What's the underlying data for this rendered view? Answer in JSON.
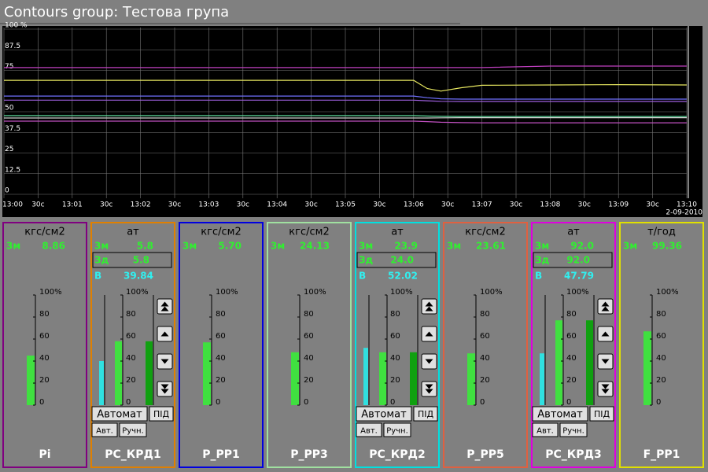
{
  "header": {
    "title": "Contours group: Тестова група"
  },
  "chart_data": {
    "type": "line",
    "x": [
      0,
      1,
      2,
      3,
      4,
      5,
      6,
      6.2,
      6.4,
      6.7,
      7,
      8,
      9,
      10
    ],
    "xlim": [
      0,
      10
    ],
    "xticks": [
      {
        "value": 0,
        "label": "13:00"
      },
      {
        "value": 0.5,
        "label": "30c"
      },
      {
        "value": 1,
        "label": "13:01"
      },
      {
        "value": 1.5,
        "label": "30c"
      },
      {
        "value": 2,
        "label": "13:02"
      },
      {
        "value": 2.5,
        "label": "30c"
      },
      {
        "value": 3,
        "label": "13:03"
      },
      {
        "value": 3.5,
        "label": "30c"
      },
      {
        "value": 4,
        "label": "13:04"
      },
      {
        "value": 4.5,
        "label": "30c"
      },
      {
        "value": 5,
        "label": "13:05"
      },
      {
        "value": 5.5,
        "label": "30c"
      },
      {
        "value": 6,
        "label": "13:06"
      },
      {
        "value": 6.5,
        "label": "30c"
      },
      {
        "value": 7,
        "label": "13:07"
      },
      {
        "value": 7.5,
        "label": "30c"
      },
      {
        "value": 8,
        "label": "13:08"
      },
      {
        "value": 8.5,
        "label": "30c"
      },
      {
        "value": 9,
        "label": "13:09"
      },
      {
        "value": 9.5,
        "label": "30c"
      },
      {
        "value": 10,
        "label": "13:10"
      }
    ],
    "date": "2-09-2010",
    "ylim": [
      0,
      100
    ],
    "yticks": [
      {
        "value": 100,
        "label": "100 %"
      },
      87.5,
      75,
      50,
      37.5,
      25,
      12.5,
      0
    ],
    "grid": true,
    "series": [
      {
        "color": "#c040c0",
        "values": [
          76.7,
          76.7,
          76.7,
          76.7,
          76.7,
          76.7,
          76.7,
          76.7,
          76.7,
          76.7,
          76.7,
          77.6,
          77.6,
          77.6
        ]
      },
      {
        "color": "#e8e860",
        "values": [
          69,
          69,
          69,
          69,
          69,
          69,
          69,
          64,
          62.5,
          64.5,
          66,
          66.2,
          66.4,
          66.2
        ]
      },
      {
        "color": "#7070ff",
        "values": [
          59.5,
          59.5,
          59.5,
          59.5,
          59.5,
          59.5,
          59.5,
          58.5,
          57.8,
          57.6,
          57.6,
          57.6,
          57.6,
          57.6
        ]
      },
      {
        "color": "#a060e0",
        "values": [
          57,
          57,
          57,
          57,
          57,
          57,
          57,
          56.6,
          56.3,
          56.2,
          56.2,
          56.2,
          56.2,
          56.2
        ]
      },
      {
        "color": "#60e0a0",
        "values": [
          47.6,
          47.6,
          47.6,
          47.6,
          47.6,
          47.6,
          47.6,
          47.4,
          47.2,
          47.1,
          47.1,
          47.1,
          47.1,
          47.1
        ]
      },
      {
        "color": "#d0d0d0",
        "values": [
          46.2,
          46.2,
          46.2,
          46.2,
          46.2,
          46.2,
          46.2,
          46.2,
          46.3,
          46.4,
          46.4,
          46.4,
          46.4,
          46.4
        ]
      },
      {
        "color": "#c050c0",
        "values": [
          44.3,
          44.3,
          44.3,
          44.3,
          44.3,
          44.3,
          44.3,
          44,
          43.6,
          43.4,
          43.3,
          43.3,
          43.3,
          43.3
        ]
      }
    ]
  },
  "labels": {
    "measured": "3м",
    "setpoint": "Зд",
    "output": "В"
  },
  "gauge_lim": [
    0,
    100
  ],
  "gauge_ticks": [
    {
      "value": 100,
      "label": "100%"
    },
    80,
    60,
    40,
    20,
    0
  ],
  "panels": [
    {
      "name": "Pi",
      "color": "#800080",
      "units": "кгс/см2",
      "measured": "8.86",
      "bars": [
        45
      ]
    },
    {
      "name": "РС_КРД1",
      "color": "#e08000",
      "units": "ат",
      "measured": "5.8",
      "setpoint": "5.8",
      "output": "39.84",
      "bars": [
        40,
        58,
        58
      ],
      "buttons": [
        "Автомат",
        "ПІД",
        "Авт.",
        "Ручн."
      ]
    },
    {
      "name": "Р_РР1",
      "color": "#0000e0",
      "units": "кгс/см2",
      "measured": "5.70",
      "bars": [
        57
      ]
    },
    {
      "name": "Р_РР3",
      "color": "#a0e0a0",
      "units": "кгс/см2",
      "measured": "24.13",
      "bars": [
        48
      ]
    },
    {
      "name": "РС_КРД2",
      "color": "#00e0e0",
      "units": "ат",
      "measured": "23.9",
      "setpoint": "24.0",
      "output": "52.02",
      "bars": [
        52,
        48,
        48
      ],
      "buttons": [
        "Автомат",
        "ПІД",
        "Авт.",
        "Ручн."
      ]
    },
    {
      "name": "Р_РР5",
      "color": "#e06040",
      "units": "кгс/см2",
      "measured": "23.61",
      "bars": [
        47
      ]
    },
    {
      "name": "РС_КРД3",
      "color": "#e000e0",
      "units": "ат",
      "measured": "92.0",
      "setpoint": "92.0",
      "output": "47.79",
      "bars": [
        47,
        77,
        77
      ],
      "buttons": [
        "Автомат",
        "ПІД",
        "Авт.",
        "Ручн."
      ]
    },
    {
      "name": "F_PP1",
      "color": "#e0e000",
      "units": "т/год",
      "measured": "99.36",
      "bars": [
        67
      ]
    }
  ]
}
